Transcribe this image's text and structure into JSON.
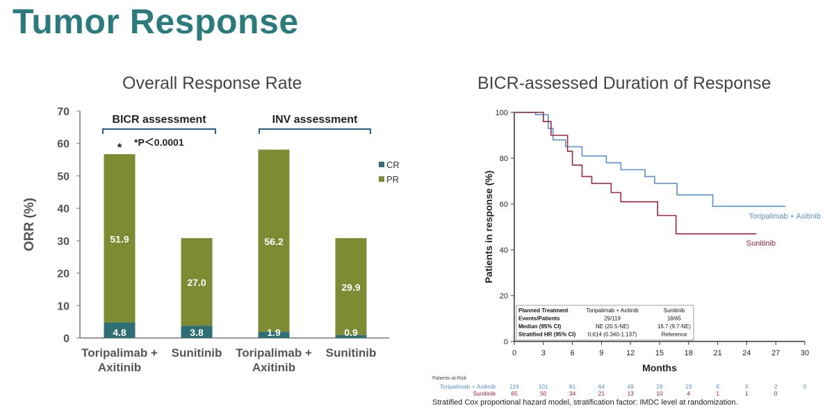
{
  "page_title": "Tumor Response",
  "colors": {
    "title": "#2b7b7c",
    "pr": "#7e8b32",
    "cr": "#2d6f73",
    "toripalimab": "#5b8fd0",
    "sunitinib": "#a3243b"
  },
  "chart_data": [
    {
      "type": "bar",
      "subtitle": "Overall Response Rate",
      "ylabel": "ORR (%)",
      "ylim": [
        0,
        70
      ],
      "yticks": [
        0,
        10,
        20,
        30,
        40,
        50,
        60,
        70
      ],
      "categories": [
        {
          "line1": "Toripalimab +",
          "line2": "Axitinib"
        },
        {
          "line1": "Sunitinib",
          "line2": ""
        },
        {
          "line1": "Toripalimab +",
          "line2": "Axitinib"
        },
        {
          "line1": "Sunitinib",
          "line2": ""
        }
      ],
      "series": [
        {
          "name": "CR",
          "values": [
            4.8,
            3.8,
            1.9,
            0.9
          ],
          "labels": [
            "4.8",
            "3.8",
            "1.9",
            "0.9"
          ]
        },
        {
          "name": "PR",
          "values": [
            51.9,
            27.0,
            56.2,
            29.9
          ],
          "labels": [
            "51.9",
            "27.0",
            "56.2",
            "29.9"
          ]
        }
      ],
      "groups": [
        "BICR assessment",
        "INV assessment"
      ],
      "annotations": {
        "star": "*",
        "pvalue": "*P＜0.0001"
      },
      "legend": [
        "CR",
        "PR"
      ]
    },
    {
      "type": "line",
      "subtitle": "BICR-assessed Duration of Response",
      "xlabel": "Months",
      "ylabel": "Patients in response (%)",
      "xlim": [
        0,
        30
      ],
      "ylim": [
        0,
        100
      ],
      "xticks": [
        0,
        3,
        6,
        9,
        12,
        15,
        18,
        21,
        24,
        27,
        30
      ],
      "yticks": [
        0,
        20,
        40,
        60,
        80,
        100
      ],
      "series": [
        {
          "name": "Toripalimab + Axitinib",
          "points": [
            [
              0,
              100
            ],
            [
              2.2,
              100
            ],
            [
              2.2,
              99
            ],
            [
              3.5,
              99
            ],
            [
              3.5,
              93
            ],
            [
              4,
              93
            ],
            [
              4,
              88
            ],
            [
              5.3,
              88
            ],
            [
              5.3,
              85
            ],
            [
              7,
              85
            ],
            [
              7,
              81
            ],
            [
              9.5,
              81
            ],
            [
              9.5,
              78
            ],
            [
              11,
              78
            ],
            [
              11,
              75
            ],
            [
              13.5,
              75
            ],
            [
              13.5,
              72
            ],
            [
              14.5,
              72
            ],
            [
              14.5,
              69
            ],
            [
              16.8,
              69
            ],
            [
              16.8,
              64
            ],
            [
              20.5,
              64
            ],
            [
              20.5,
              59
            ],
            [
              28,
              59
            ]
          ]
        },
        {
          "name": "Sunitinib",
          "points": [
            [
              0,
              100
            ],
            [
              3,
              100
            ],
            [
              3,
              96
            ],
            [
              3.8,
              96
            ],
            [
              3.8,
              90
            ],
            [
              5.5,
              90
            ],
            [
              5.5,
              83
            ],
            [
              6,
              83
            ],
            [
              6,
              77
            ],
            [
              7,
              77
            ],
            [
              7,
              72
            ],
            [
              8,
              72
            ],
            [
              8,
              69
            ],
            [
              10,
              69
            ],
            [
              10,
              65
            ],
            [
              11,
              65
            ],
            [
              11,
              61
            ],
            [
              14.8,
              61
            ],
            [
              14.8,
              55
            ],
            [
              16.7,
              55
            ],
            [
              16.7,
              47
            ],
            [
              25,
              47
            ]
          ]
        }
      ],
      "risk_table": {
        "header": "Patients-at-Risk",
        "rows": [
          {
            "name": "Toripalimab + Axitinib",
            "values": [
              "119",
              "101",
              "81",
              "64",
              "49",
              "29",
              "19",
              "8",
              "5",
              "2",
              "0"
            ]
          },
          {
            "name": "Sunitinib",
            "values": [
              "65",
              "50",
              "34",
              "21",
              "13",
              "10",
              "4",
              "1",
              "1",
              "0",
              ""
            ]
          }
        ]
      },
      "stats_table": [
        [
          "Planned Treatment",
          "Toripalimab + Axitinib",
          "Sunitinib"
        ],
        [
          "Events/Patients",
          "29/119",
          "18/65"
        ],
        [
          "Median (95% CI)",
          "NE (20.5-NE)",
          "16.7 (9.7-NE)"
        ],
        [
          "Stratified HR (95% CI)",
          "0.614 (0.340-1.137)",
          "Reference"
        ]
      ],
      "footnote": "Stratified Cox proportional hazard model, stratification factor: IMDC level at randomization."
    }
  ]
}
